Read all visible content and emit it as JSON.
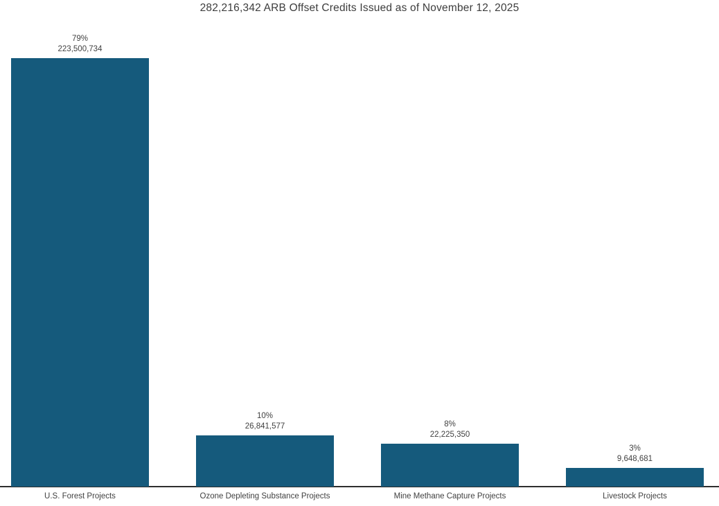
{
  "chart_data": {
    "type": "bar",
    "title": "282,216,342 ARB Offset Credits Issued as of November 12, 2025",
    "total_credits": 282216342,
    "as_of_date": "November 12, 2025",
    "categories": [
      "U.S. Forest Projects",
      "Ozone Depleting Substance Projects",
      "Mine Methane Capture Projects",
      "Livestock Projects"
    ],
    "values": [
      223500734,
      26841577,
      22225350,
      9648681
    ],
    "percent_labels": [
      "79%",
      "10%",
      "8%",
      "3%"
    ],
    "value_labels": [
      "223,500,734",
      "26,841,577",
      "22,225,350",
      "9,648,681"
    ],
    "xlabel": "",
    "ylabel": "",
    "grid": "off",
    "legend": "none",
    "bar_color": "#155A7C",
    "axis_line_color": "#2e2e2e",
    "text_color": "#414141",
    "title_color": "#3c3c3c",
    "background_color": "#ffffff"
  }
}
